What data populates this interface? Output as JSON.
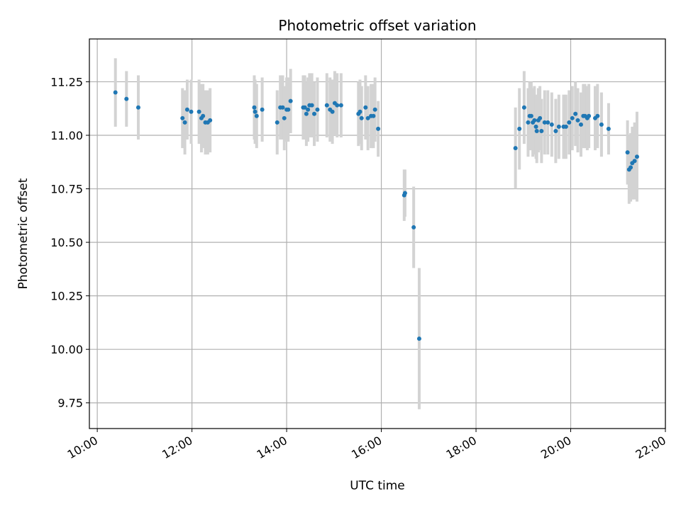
{
  "chart_data": {
    "type": "scatter",
    "title": "Photometric offset variation",
    "xlabel": "UTC time",
    "ylabel": "Photometric offset",
    "x_ticks": [
      "10:00",
      "12:00",
      "14:00",
      "16:00",
      "18:00",
      "20:00",
      "22:00"
    ],
    "y_ticks": [
      "9.75",
      "10.00",
      "10.25",
      "10.50",
      "10.75",
      "11.00",
      "11.25"
    ],
    "xlim": [
      "09:50",
      "22:00"
    ],
    "ylim": [
      9.63,
      11.45
    ],
    "grid": true,
    "colors": {
      "point": "#1f77b4",
      "errorbar": "#d3d3d3",
      "grid": "#b0b0b0"
    },
    "series": [
      {
        "x": [
          "10:23",
          "10:37",
          "10:52",
          "11:48",
          "11:51",
          "11:54",
          "11:59",
          "12:09",
          "12:12",
          "12:14",
          "12:17",
          "12:20",
          "12:23",
          "13:19",
          "13:20",
          "13:22",
          "13:29",
          "13:48",
          "13:52",
          "13:55",
          "13:57",
          "14:00",
          "14:02",
          "14:05",
          "14:21",
          "14:23",
          "14:25",
          "14:27",
          "14:29",
          "14:32",
          "14:35",
          "14:39",
          "14:51",
          "14:55",
          "14:58",
          "15:01",
          "15:04",
          "15:09",
          "15:31",
          "15:33",
          "15:35",
          "15:40",
          "15:43",
          "15:47",
          "15:50",
          "15:52",
          "15:56",
          "16:29",
          "16:30",
          "16:41",
          "16:48",
          "18:50",
          "18:55",
          "19:01",
          "19:06",
          "19:08",
          "19:10",
          "19:12",
          "19:14",
          "19:16",
          "19:17",
          "19:19",
          "19:21",
          "19:23",
          "19:27",
          "19:31",
          "19:36",
          "19:41",
          "19:45",
          "19:51",
          "19:54",
          "19:58",
          "20:02",
          "20:06",
          "20:09",
          "20:13",
          "20:16",
          "20:18",
          "20:21",
          "20:23",
          "20:31",
          "20:34",
          "20:39",
          "20:48",
          "21:12",
          "21:14",
          "21:16",
          "21:18",
          "21:21",
          "21:24"
        ],
        "y": [
          11.2,
          11.17,
          11.13,
          11.08,
          11.06,
          11.12,
          11.11,
          11.11,
          11.08,
          11.09,
          11.06,
          11.06,
          11.07,
          11.13,
          11.11,
          11.09,
          11.12,
          11.06,
          11.13,
          11.13,
          11.08,
          11.12,
          11.12,
          11.16,
          11.13,
          11.13,
          11.1,
          11.12,
          11.14,
          11.14,
          11.1,
          11.12,
          11.14,
          11.12,
          11.11,
          11.15,
          11.14,
          11.14,
          11.1,
          11.11,
          11.08,
          11.13,
          11.08,
          11.09,
          11.09,
          11.12,
          11.03,
          10.72,
          10.73,
          10.57,
          10.05,
          10.94,
          11.03,
          11.13,
          11.06,
          11.09,
          11.09,
          11.06,
          11.07,
          11.04,
          11.02,
          11.07,
          11.08,
          11.02,
          11.06,
          11.06,
          11.05,
          11.02,
          11.04,
          11.04,
          11.04,
          11.06,
          11.08,
          11.1,
          11.07,
          11.05,
          11.09,
          11.09,
          11.08,
          11.09,
          11.08,
          11.09,
          11.05,
          11.03,
          10.92,
          10.84,
          10.85,
          10.87,
          10.88,
          10.9
        ],
        "yerr": [
          0.16,
          0.13,
          0.15,
          0.14,
          0.15,
          0.14,
          0.15,
          0.15,
          0.16,
          0.15,
          0.15,
          0.15,
          0.15,
          0.15,
          0.15,
          0.15,
          0.15,
          0.15,
          0.15,
          0.15,
          0.15,
          0.15,
          0.15,
          0.15,
          0.15,
          0.15,
          0.15,
          0.15,
          0.15,
          0.15,
          0.15,
          0.15,
          0.15,
          0.15,
          0.15,
          0.15,
          0.15,
          0.15,
          0.15,
          0.15,
          0.15,
          0.15,
          0.15,
          0.15,
          0.15,
          0.15,
          0.13,
          0.12,
          0.11,
          0.19,
          0.33,
          0.19,
          0.19,
          0.17,
          0.16,
          0.16,
          0.16,
          0.16,
          0.16,
          0.15,
          0.15,
          0.15,
          0.15,
          0.15,
          0.15,
          0.15,
          0.15,
          0.15,
          0.15,
          0.15,
          0.15,
          0.15,
          0.15,
          0.15,
          0.15,
          0.15,
          0.15,
          0.15,
          0.15,
          0.15,
          0.15,
          0.15,
          0.15,
          0.12,
          0.15,
          0.16,
          0.16,
          0.17,
          0.18,
          0.21
        ]
      }
    ]
  }
}
